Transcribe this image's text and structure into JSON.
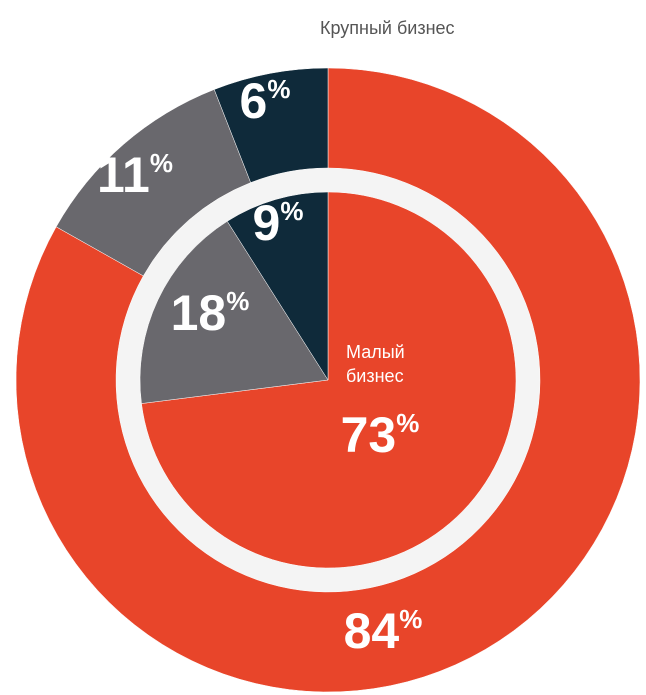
{
  "chart_data": [
    {
      "type": "pie",
      "title": "Крупный бизнес",
      "values": [
        84,
        11,
        6
      ],
      "colors": [
        "#e8452a",
        "#69686d",
        "#0f2a3a"
      ],
      "unit": "%"
    },
    {
      "type": "pie",
      "title": "Малый бизнес",
      "values": [
        73,
        18,
        9
      ],
      "colors": [
        "#e8452a",
        "#69686d",
        "#0f2a3a"
      ],
      "unit": "%"
    }
  ]
}
